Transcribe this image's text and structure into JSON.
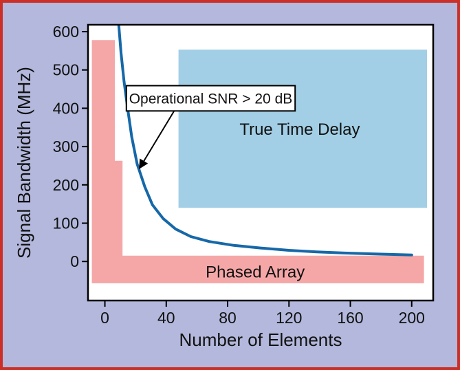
{
  "figure": {
    "colors": {
      "background": "#b3b8dc",
      "border": "#cb2f27"
    }
  },
  "chart_data": {
    "type": "line",
    "title": "",
    "xlabel": "Number of Elements",
    "ylabel": "Signal Bandwidth (MHz)",
    "xlim": [
      -11,
      214
    ],
    "ylim": [
      -102,
      618
    ],
    "x_ticks": [
      0,
      40,
      80,
      120,
      160,
      200
    ],
    "y_ticks": [
      0,
      100,
      200,
      300,
      400,
      500,
      600
    ],
    "grid": false,
    "legend": "none",
    "colors": {
      "plot_background": "#ffffff",
      "axis": "#000000",
      "text": "#111111"
    },
    "series": [
      {
        "id": "operational-snr-curve",
        "name": "Operational SNR > 20 dB",
        "color": "#1668a8",
        "x": [
          9,
          10.5,
          12.5,
          15,
          17.5,
          21,
          26,
          31,
          38,
          46,
          56,
          68,
          84,
          102,
          120,
          138,
          156,
          174,
          192,
          200
        ],
        "values": [
          620,
          545,
          470,
          395,
          325,
          255,
          195,
          148,
          112,
          85,
          65,
          52,
          42,
          35,
          29,
          25,
          22,
          20,
          18,
          17
        ]
      }
    ],
    "regions": [
      {
        "id": "phased-array",
        "label": "Phased Array",
        "color": "#f5a7a7",
        "polygon": [
          [
            -8.5,
            -57
          ],
          [
            -8.5,
            578
          ],
          [
            6.5,
            578
          ],
          [
            6.5,
            263
          ],
          [
            11.5,
            263
          ],
          [
            11.5,
            15
          ],
          [
            208,
            15
          ],
          [
            208,
            -57
          ]
        ],
        "label_pos": [
          98,
          -42
        ]
      },
      {
        "id": "true-time-delay",
        "label": "True Time Delay",
        "color": "#a2cfe6",
        "rect": {
          "x": [
            48,
            210
          ],
          "y": [
            140,
            553
          ]
        },
        "label_pos": [
          127,
          331
        ]
      }
    ],
    "annotation": {
      "text": "Operational SNR > 20 dB",
      "box": {
        "x": [
          14,
          124
        ],
        "y": [
          393,
          459
        ]
      },
      "arrow_from": [
        45,
        392
      ],
      "arrow_to": [
        22.5,
        243
      ]
    }
  }
}
